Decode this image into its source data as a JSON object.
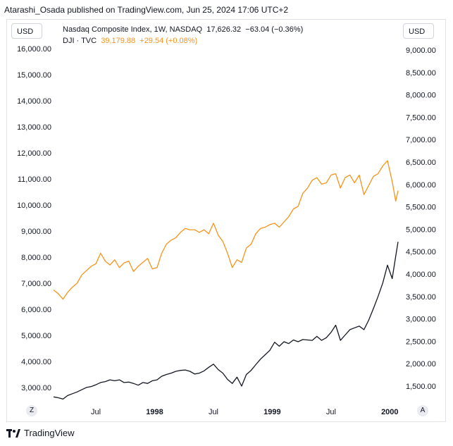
{
  "header": {
    "published_by": "Atarashi_Osada published on TradingView.com, Jun 25, 2024 17:06 UTC+2"
  },
  "left_scale_button": "USD",
  "right_scale_button": "USD",
  "legend": {
    "primary_title": "Nasdaq Composite Index, 1W, NASDAQ",
    "primary_last": "17,626.32",
    "primary_change": "−63.04 (−0.36%)",
    "secondary_title": "DJI · TVC",
    "secondary_last": "39,179.88",
    "secondary_change": "+29.54 (+0.08%)"
  },
  "scale_tags": {
    "left": "Z",
    "right": "A"
  },
  "brand": {
    "name": "TradingView"
  },
  "colors": {
    "nasdaq": "#131722",
    "dji": "#f7931a",
    "grid": "#e0e3eb"
  },
  "chart_data": {
    "type": "line",
    "title": "Nasdaq Composite Index, 1W, NASDAQ vs DJI · TVC",
    "x_ticks": [
      "Jul",
      "1998",
      "Jul",
      "1999",
      "Jul",
      "2000"
    ],
    "x_tick_dates": [
      1997.5,
      1998.0,
      1998.5,
      1999.0,
      1999.5,
      2000.0
    ],
    "x_range": [
      1997.14,
      2000.07
    ],
    "left_axis": {
      "label": "USD",
      "ticks": [
        "16,000.00",
        "15,000.00",
        "14,000.00",
        "13,000.00",
        "12,000.00",
        "11,000.00",
        "10,000.00",
        "9,000.00",
        "8,000.00",
        "7,000.00",
        "6,000.00",
        "5,000.00",
        "4,000.00",
        "3,000.00"
      ],
      "tick_values": [
        16000,
        15000,
        14000,
        13000,
        12000,
        11000,
        10000,
        9000,
        8000,
        7000,
        6000,
        5000,
        4000,
        3000
      ],
      "range": [
        2500,
        16200
      ]
    },
    "right_axis": {
      "label": "USD",
      "ticks": [
        "9,000.00",
        "8,500.00",
        "8,000.00",
        "7,500.00",
        "7,000.00",
        "6,500.00",
        "6,000.00",
        "5,500.00",
        "5,000.00",
        "4,500.00",
        "4,000.00",
        "3,500.00",
        "3,000.00",
        "2,500.00",
        "2,000.00",
        "1,500.00"
      ],
      "tick_values": [
        9000,
        8500,
        8000,
        7500,
        7000,
        6500,
        6000,
        5500,
        5000,
        4500,
        4000,
        3500,
        3000,
        2500,
        2000,
        1500
      ],
      "range": [
        1100,
        9100
      ]
    },
    "series": [
      {
        "name": "DJI",
        "axis": "left",
        "color": "#f7931a",
        "x": [
          1997.14,
          1997.18,
          1997.22,
          1997.26,
          1997.3,
          1997.34,
          1997.38,
          1997.42,
          1997.46,
          1997.5,
          1997.54,
          1997.58,
          1997.62,
          1997.66,
          1997.7,
          1997.74,
          1997.78,
          1997.82,
          1997.86,
          1997.9,
          1997.94,
          1997.98,
          1998.02,
          1998.06,
          1998.1,
          1998.14,
          1998.18,
          1998.22,
          1998.26,
          1998.3,
          1998.34,
          1998.38,
          1998.42,
          1998.46,
          1998.5,
          1998.54,
          1998.58,
          1998.62,
          1998.66,
          1998.7,
          1998.74,
          1998.78,
          1998.82,
          1998.86,
          1998.9,
          1998.94,
          1998.98,
          1999.02,
          1999.06,
          1999.1,
          1999.14,
          1999.18,
          1999.22,
          1999.26,
          1999.3,
          1999.34,
          1999.38,
          1999.42,
          1999.46,
          1999.5,
          1999.54,
          1999.58,
          1999.62,
          1999.66,
          1999.7,
          1999.74,
          1999.78,
          1999.82,
          1999.86,
          1999.9,
          1999.94,
          1999.98,
          2000.02,
          2000.05,
          2000.07
        ],
        "values": [
          6740,
          6600,
          6390,
          6650,
          6850,
          7000,
          7320,
          7480,
          7650,
          7750,
          8150,
          7850,
          7700,
          7900,
          7600,
          7780,
          7850,
          7450,
          7650,
          7800,
          7950,
          7550,
          7600,
          8150,
          8500,
          8650,
          8750,
          8950,
          9100,
          9050,
          9050,
          8950,
          9050,
          8900,
          9300,
          8850,
          8600,
          8150,
          7600,
          7900,
          7800,
          8350,
          8500,
          8900,
          9100,
          9150,
          9250,
          9300,
          9150,
          9350,
          9550,
          9850,
          9950,
          10450,
          10650,
          10950,
          11050,
          10800,
          10850,
          11150,
          11200,
          10650,
          11050,
          11150,
          10850,
          11150,
          10400,
          10750,
          11100,
          11200,
          11500,
          11700,
          10900,
          10150,
          10550
        ]
      },
      {
        "name": "Nasdaq Composite",
        "axis": "right",
        "color": "#131722",
        "x": [
          1997.14,
          1997.18,
          1997.22,
          1997.26,
          1997.3,
          1997.34,
          1997.38,
          1997.42,
          1997.46,
          1997.5,
          1997.54,
          1997.58,
          1997.62,
          1997.66,
          1997.7,
          1997.74,
          1997.78,
          1997.82,
          1997.86,
          1997.9,
          1997.94,
          1997.98,
          1998.02,
          1998.06,
          1998.1,
          1998.14,
          1998.18,
          1998.22,
          1998.26,
          1998.3,
          1998.34,
          1998.38,
          1998.42,
          1998.46,
          1998.5,
          1998.54,
          1998.58,
          1998.62,
          1998.66,
          1998.7,
          1998.74,
          1998.78,
          1998.82,
          1998.86,
          1998.9,
          1998.94,
          1998.98,
          1999.02,
          1999.06,
          1999.1,
          1999.14,
          1999.18,
          1999.22,
          1999.26,
          1999.3,
          1999.34,
          1999.38,
          1999.42,
          1999.46,
          1999.5,
          1999.54,
          1999.58,
          1999.62,
          1999.66,
          1999.7,
          1999.74,
          1999.78,
          1999.82,
          1999.86,
          1999.9,
          1999.94,
          1999.98,
          2000.02,
          2000.05,
          2000.07
        ],
        "values": [
          1260,
          1240,
          1210,
          1290,
          1330,
          1370,
          1420,
          1470,
          1490,
          1530,
          1580,
          1600,
          1640,
          1620,
          1640,
          1580,
          1590,
          1560,
          1520,
          1580,
          1560,
          1620,
          1640,
          1720,
          1760,
          1790,
          1830,
          1850,
          1860,
          1830,
          1770,
          1790,
          1840,
          1920,
          1990,
          1870,
          1790,
          1650,
          1560,
          1700,
          1500,
          1760,
          1850,
          1980,
          2100,
          2200,
          2300,
          2480,
          2390,
          2490,
          2450,
          2530,
          2490,
          2540,
          2530,
          2520,
          2610,
          2520,
          2580,
          2700,
          2860,
          2520,
          2640,
          2760,
          2800,
          2840,
          2760,
          2970,
          3230,
          3500,
          3800,
          4200,
          3900,
          4400,
          4720
        ]
      }
    ]
  }
}
